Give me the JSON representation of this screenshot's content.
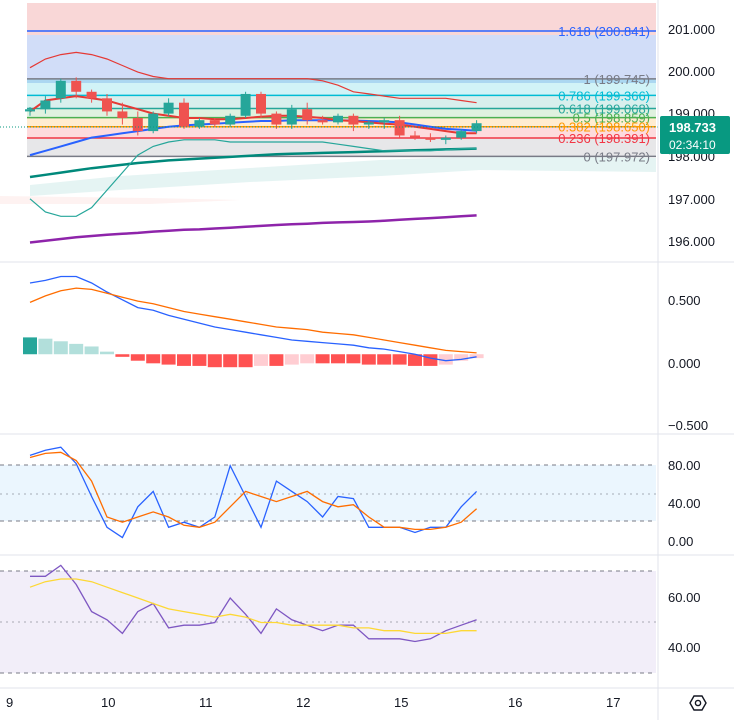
{
  "colors": {
    "up": "#26a69a",
    "down": "#ef5350",
    "grid": "#e0e3eb",
    "axis_text": "#131722",
    "price_tag_bg": "#089981",
    "ma_purple": "#8e24aa",
    "ma_green": "#00897b",
    "ma_blue": "#2962ff",
    "ma_red": "#e53935",
    "bb_upper": "#e53935",
    "bb_lower": "#26a69a",
    "macd_line": "#2962ff",
    "signal_line": "#ff6d00",
    "stoch_k": "#2962ff",
    "stoch_d": "#ff6d00",
    "rsi_line": "#7e57c2",
    "rsi_ma": "#fdd835"
  },
  "price_axis": {
    "labels": [
      "201.000",
      "200.000",
      "199.000",
      "198.000",
      "197.000",
      "196.000"
    ]
  },
  "current_price": {
    "value": "198.733",
    "countdown": "02:34:10"
  },
  "fib_levels": [
    {
      "label": "1.618 (200.841)",
      "price": 200.841,
      "color": "#2962ff"
    },
    {
      "label": "1 (199.745)",
      "price": 199.745,
      "color": "#787b86"
    },
    {
      "label": "0.786 (199.366)",
      "price": 199.366,
      "color": "#00bcd4"
    },
    {
      "label": "0.618 (199.068)",
      "price": 199.068,
      "color": "#26a69a"
    },
    {
      "label": "0.5 (198.859)",
      "price": 198.859,
      "color": "#4caf50"
    },
    {
      "label": "0.382 (198.650)",
      "price": 198.65,
      "color": "#ff9800"
    },
    {
      "label": "0.236 (198.391)",
      "price": 198.391,
      "color": "#f23645"
    },
    {
      "label": "0 (197.972)",
      "price": 197.972,
      "color": "#787b86"
    }
  ],
  "macd_axis": {
    "labels": [
      "0.500",
      "0.000",
      "−0.500"
    ]
  },
  "stoch_axis": {
    "labels": [
      "80.00",
      "40.00",
      "0.00"
    ]
  },
  "rsi_axis": {
    "labels": [
      "60.00",
      "40.00"
    ]
  },
  "date_axis": {
    "labels": [
      "9",
      "10",
      "11",
      "12",
      "15",
      "16",
      "17"
    ]
  },
  "toolbar": {
    "settings_icon": "settings-icon"
  },
  "chart_data": [
    {
      "type": "candlestick",
      "title": "",
      "y_range": [
        195.6,
        201.55
      ],
      "candles": [
        {
          "o": 199.0,
          "h": 199.1,
          "l": 198.9,
          "c": 199.05
        },
        {
          "o": 199.05,
          "h": 199.35,
          "l": 198.95,
          "c": 199.25
        },
        {
          "o": 199.3,
          "h": 199.75,
          "l": 199.2,
          "c": 199.7
        },
        {
          "o": 199.7,
          "h": 199.78,
          "l": 199.3,
          "c": 199.45
        },
        {
          "o": 199.45,
          "h": 199.5,
          "l": 199.2,
          "c": 199.3
        },
        {
          "o": 199.3,
          "h": 199.4,
          "l": 198.9,
          "c": 199.0
        },
        {
          "o": 199.0,
          "h": 199.2,
          "l": 198.7,
          "c": 198.85
        },
        {
          "o": 198.85,
          "h": 199.0,
          "l": 198.45,
          "c": 198.55
        },
        {
          "o": 198.55,
          "h": 199.0,
          "l": 198.5,
          "c": 198.95
        },
        {
          "o": 198.95,
          "h": 199.3,
          "l": 198.9,
          "c": 199.2
        },
        {
          "o": 199.2,
          "h": 199.3,
          "l": 198.6,
          "c": 198.65
        },
        {
          "o": 198.65,
          "h": 198.85,
          "l": 198.6,
          "c": 198.8
        },
        {
          "o": 198.8,
          "h": 198.85,
          "l": 198.65,
          "c": 198.7
        },
        {
          "o": 198.7,
          "h": 198.95,
          "l": 198.65,
          "c": 198.9
        },
        {
          "o": 198.9,
          "h": 199.45,
          "l": 198.85,
          "c": 199.4
        },
        {
          "o": 199.4,
          "h": 199.45,
          "l": 198.85,
          "c": 198.95
        },
        {
          "o": 198.95,
          "h": 199.0,
          "l": 198.6,
          "c": 198.7
        },
        {
          "o": 198.7,
          "h": 199.15,
          "l": 198.6,
          "c": 199.05
        },
        {
          "o": 199.05,
          "h": 199.2,
          "l": 198.7,
          "c": 198.8
        },
        {
          "o": 198.8,
          "h": 198.9,
          "l": 198.7,
          "c": 198.75
        },
        {
          "o": 198.75,
          "h": 198.95,
          "l": 198.7,
          "c": 198.9
        },
        {
          "o": 198.9,
          "h": 198.95,
          "l": 198.55,
          "c": 198.7
        },
        {
          "o": 198.7,
          "h": 198.8,
          "l": 198.6,
          "c": 198.75
        },
        {
          "o": 198.75,
          "h": 198.85,
          "l": 198.6,
          "c": 198.8
        },
        {
          "o": 198.8,
          "h": 198.9,
          "l": 198.4,
          "c": 198.45
        },
        {
          "o": 198.45,
          "h": 198.55,
          "l": 198.35,
          "c": 198.4
        },
        {
          "o": 198.4,
          "h": 198.5,
          "l": 198.3,
          "c": 198.35
        },
        {
          "o": 198.35,
          "h": 198.45,
          "l": 198.25,
          "c": 198.4
        },
        {
          "o": 198.4,
          "h": 198.6,
          "l": 198.35,
          "c": 198.55
        },
        {
          "o": 198.55,
          "h": 198.8,
          "l": 198.5,
          "c": 198.73
        }
      ],
      "series": [
        {
          "values": [
            198.0,
            198.1,
            198.2,
            198.3,
            198.4,
            198.45,
            198.5,
            198.55,
            198.6,
            198.65,
            198.68,
            198.7,
            198.72,
            198.74,
            198.76,
            198.78,
            198.78,
            198.8,
            198.8,
            198.8,
            198.8,
            198.79,
            198.78,
            198.77,
            198.75,
            198.7,
            198.65,
            198.6,
            198.58,
            198.56
          ]
        },
        {
          "values": [
            199.0,
            199.25,
            199.3,
            199.35,
            199.3,
            199.25,
            199.15,
            199.05,
            198.95,
            198.9,
            198.85,
            198.85,
            198.82,
            198.82,
            198.85,
            198.88,
            198.9,
            198.9,
            198.88,
            198.85,
            198.8,
            198.78,
            198.75,
            198.72,
            198.7,
            198.65,
            198.6,
            198.55,
            198.5,
            198.5
          ]
        },
        {
          "values": [
            197.5,
            197.55,
            197.6,
            197.65,
            197.7,
            197.74,
            197.78,
            197.82,
            197.85,
            197.88,
            197.9,
            197.92,
            197.94,
            197.96,
            197.98,
            198.0,
            198.02,
            198.03,
            198.04,
            198.05,
            198.06,
            198.07,
            198.08,
            198.09,
            198.1,
            198.11,
            198.12,
            198.13,
            198.14,
            198.15
          ]
        },
        {
          "values": [
            196.0,
            196.04,
            196.08,
            196.12,
            196.15,
            196.18,
            196.2,
            196.22,
            196.25,
            196.27,
            196.29,
            196.3,
            196.32,
            196.34,
            196.36,
            196.38,
            196.4,
            196.42,
            196.43,
            196.45,
            196.46,
            196.47,
            196.48,
            196.5,
            196.52,
            196.54,
            196.56,
            196.58,
            196.6,
            196.62
          ]
        },
        {
          "values": [
            200.0,
            200.2,
            200.3,
            200.35,
            200.3,
            200.2,
            200.05,
            199.9,
            199.8,
            199.75,
            199.75,
            199.75,
            199.75,
            199.75,
            199.75,
            199.75,
            199.75,
            199.75,
            199.75,
            199.7,
            199.6,
            199.45,
            199.4,
            199.35,
            199.3,
            199.3,
            199.3,
            199.3,
            199.25,
            199.2
          ]
        },
        {
          "values": [
            197.0,
            196.7,
            196.6,
            196.6,
            196.8,
            197.2,
            197.6,
            198.0,
            198.2,
            198.3,
            198.35,
            198.35,
            198.35,
            198.3,
            198.3,
            198.3,
            198.3,
            198.3,
            198.3,
            198.3,
            198.25,
            198.2,
            198.15,
            198.1,
            198.1,
            198.1,
            198.1,
            198.12,
            198.15,
            198.15
          ]
        }
      ]
    },
    {
      "type": "bar",
      "title": "",
      "y_range": [
        -0.6,
        0.65
      ],
      "histogram": [
        0.13,
        0.12,
        0.1,
        0.08,
        0.06,
        0.02,
        -0.02,
        -0.05,
        -0.07,
        -0.08,
        -0.09,
        -0.09,
        -0.1,
        -0.1,
        -0.1,
        -0.09,
        -0.09,
        -0.08,
        -0.07,
        -0.07,
        -0.07,
        -0.07,
        -0.08,
        -0.08,
        -0.08,
        -0.09,
        -0.09,
        -0.08,
        -0.05,
        -0.03
      ],
      "series": [
        {
          "values": [
            0.55,
            0.57,
            0.6,
            0.6,
            0.55,
            0.48,
            0.42,
            0.36,
            0.34,
            0.3,
            0.27,
            0.24,
            0.21,
            0.19,
            0.17,
            0.15,
            0.13,
            0.11,
            0.1,
            0.09,
            0.08,
            0.07,
            0.05,
            0.04,
            0.02,
            0.0,
            -0.03,
            -0.05,
            -0.04,
            -0.02
          ]
        },
        {
          "values": [
            0.4,
            0.45,
            0.49,
            0.51,
            0.5,
            0.47,
            0.44,
            0.41,
            0.39,
            0.36,
            0.33,
            0.31,
            0.29,
            0.27,
            0.25,
            0.23,
            0.21,
            0.2,
            0.19,
            0.17,
            0.16,
            0.15,
            0.13,
            0.11,
            0.09,
            0.07,
            0.05,
            0.03,
            0.02,
            0.01
          ]
        }
      ]
    },
    {
      "type": "line",
      "title": "",
      "y_range": [
        -5,
        105
      ],
      "band": [
        20,
        80
      ],
      "series": [
        {
          "values": [
            90,
            95,
            98,
            82,
            50,
            20,
            10,
            40,
            55,
            20,
            25,
            20,
            30,
            80,
            50,
            20,
            65,
            55,
            45,
            30,
            50,
            48,
            20,
            20,
            20,
            15,
            20,
            20,
            40,
            55
          ]
        },
        {
          "values": [
            88,
            92,
            93,
            85,
            65,
            30,
            25,
            30,
            35,
            30,
            22,
            20,
            25,
            40,
            55,
            50,
            45,
            50,
            55,
            45,
            40,
            42,
            30,
            20,
            20,
            18,
            18,
            20,
            25,
            38
          ]
        }
      ]
    },
    {
      "type": "line",
      "title": "",
      "y_range": [
        28,
        74
      ],
      "series": [
        {
          "values": [
            68,
            68,
            72,
            65,
            55,
            52,
            47,
            55,
            58,
            49,
            50,
            50,
            51,
            60,
            54,
            47,
            56,
            52,
            50,
            48,
            50,
            50,
            45,
            45,
            45,
            44,
            45,
            48,
            50,
            52
          ]
        },
        {
          "values": [
            64,
            66,
            67,
            67,
            66,
            64,
            62,
            60,
            58,
            56,
            55,
            54,
            53,
            54,
            53,
            51,
            51,
            50,
            50,
            50,
            50,
            49,
            49,
            48,
            48,
            47,
            47,
            47,
            48,
            48
          ]
        }
      ]
    }
  ]
}
